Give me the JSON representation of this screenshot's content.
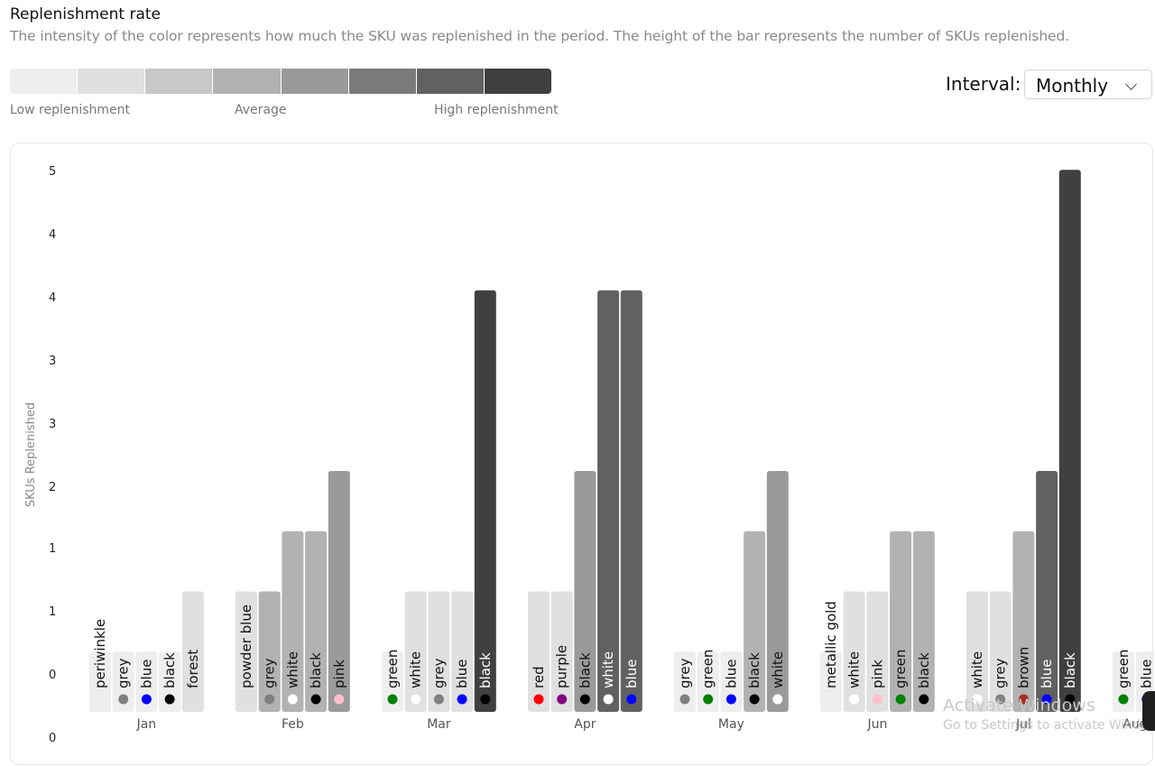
{
  "header": {
    "title": "Replenishment rate",
    "subtitle": "The intensity of the color represents how much the SKU was replenished in the period. The height of the bar represents the number of SKUs replenished."
  },
  "legend": {
    "scale_colors": [
      "#eeeeee",
      "#e0e0e0",
      "#c8c8c8",
      "#b2b2b2",
      "#9a9a9a",
      "#7a7a7a",
      "#616161",
      "#404040"
    ],
    "low_label": "Low replenishment",
    "mid_label": "Average",
    "high_label": "High replenishment"
  },
  "controls": {
    "interval_label": "Interval:",
    "interval_value": "Monthly",
    "chevron_icon": "chevron-down-icon"
  },
  "watermark": {
    "line1": "Activate Windows",
    "line2": "Go to Settings to activate Windows."
  },
  "chart_data": {
    "type": "bar",
    "ylabel": "SKUs Replenished",
    "xlabel": "",
    "y_tick_labels": [
      "0",
      "0",
      "1",
      "1",
      "2",
      "3",
      "3",
      "4",
      "4",
      "5"
    ],
    "ylim": [
      0,
      4.5
    ],
    "groups": [
      {
        "month": "Jan",
        "bars": [
          {
            "label": "periwinkle",
            "value": 0.5,
            "intensity": 1,
            "dot": null
          },
          {
            "label": "grey",
            "value": 0.5,
            "intensity": 1,
            "dot": "#808080"
          },
          {
            "label": "blue",
            "value": 0.5,
            "intensity": 1,
            "dot": "#0000ff"
          },
          {
            "label": "black",
            "value": 0.5,
            "intensity": 1,
            "dot": "#000000"
          },
          {
            "label": "forest",
            "value": 1.0,
            "intensity": 2,
            "dot": null
          }
        ]
      },
      {
        "month": "Feb",
        "bars": [
          {
            "label": "powder blue",
            "value": 1.0,
            "intensity": 2,
            "dot": null
          },
          {
            "label": "grey",
            "value": 1.0,
            "intensity": 4,
            "dot": "#808080"
          },
          {
            "label": "white",
            "value": 1.5,
            "intensity": 4,
            "dot": "#ffffff"
          },
          {
            "label": "black",
            "value": 1.5,
            "intensity": 4,
            "dot": "#000000"
          },
          {
            "label": "pink",
            "value": 2.0,
            "intensity": 5,
            "dot": "#ffc0cb"
          }
        ]
      },
      {
        "month": "Mar",
        "bars": [
          {
            "label": "green",
            "value": 0.5,
            "intensity": 1,
            "dot": "#008000"
          },
          {
            "label": "white",
            "value": 1.0,
            "intensity": 2,
            "dot": "#ffffff"
          },
          {
            "label": "grey",
            "value": 1.0,
            "intensity": 2,
            "dot": "#808080"
          },
          {
            "label": "blue",
            "value": 1.0,
            "intensity": 2,
            "dot": "#0000ff"
          },
          {
            "label": "black",
            "value": 3.5,
            "intensity": 8,
            "dot": "#000000"
          }
        ]
      },
      {
        "month": "Apr",
        "bars": [
          {
            "label": "red",
            "value": 1.0,
            "intensity": 2,
            "dot": "#ff0000"
          },
          {
            "label": "purple",
            "value": 1.0,
            "intensity": 2,
            "dot": "#800080"
          },
          {
            "label": "black",
            "value": 2.0,
            "intensity": 5,
            "dot": "#000000"
          },
          {
            "label": "white",
            "value": 3.5,
            "intensity": 7,
            "dot": "#ffffff"
          },
          {
            "label": "blue",
            "value": 3.5,
            "intensity": 7,
            "dot": "#0000ff"
          }
        ]
      },
      {
        "month": "May",
        "bars": [
          {
            "label": "grey",
            "value": 0.5,
            "intensity": 1,
            "dot": "#808080"
          },
          {
            "label": "green",
            "value": 0.5,
            "intensity": 1,
            "dot": "#008000"
          },
          {
            "label": "blue",
            "value": 0.5,
            "intensity": 1,
            "dot": "#0000ff"
          },
          {
            "label": "black",
            "value": 1.5,
            "intensity": 4,
            "dot": "#000000"
          },
          {
            "label": "white",
            "value": 2.0,
            "intensity": 5,
            "dot": "#ffffff"
          }
        ]
      },
      {
        "month": "Jun",
        "bars": [
          {
            "label": "metallic gold",
            "value": 0.5,
            "intensity": 1,
            "dot": null
          },
          {
            "label": "white",
            "value": 1.0,
            "intensity": 2,
            "dot": "#ffffff"
          },
          {
            "label": "pink",
            "value": 1.0,
            "intensity": 2,
            "dot": "#ffc0cb"
          },
          {
            "label": "green",
            "value": 1.5,
            "intensity": 4,
            "dot": "#008000"
          },
          {
            "label": "black",
            "value": 1.5,
            "intensity": 4,
            "dot": "#000000"
          }
        ]
      },
      {
        "month": "Jul",
        "bars": [
          {
            "label": "white",
            "value": 1.0,
            "intensity": 2,
            "dot": "#ffffff"
          },
          {
            "label": "grey",
            "value": 1.0,
            "intensity": 2,
            "dot": "#808080"
          },
          {
            "label": "brown",
            "value": 1.5,
            "intensity": 4,
            "dot": "#a52a2a"
          },
          {
            "label": "blue",
            "value": 2.0,
            "intensity": 7,
            "dot": "#0000ff"
          },
          {
            "label": "black",
            "value": 4.5,
            "intensity": 8,
            "dot": "#000000"
          }
        ]
      },
      {
        "month": "Aug",
        "bars": [
          {
            "label": "green",
            "value": 0.5,
            "intensity": 1,
            "dot": "#008000"
          },
          {
            "label": "blue",
            "value": 0.5,
            "intensity": 1,
            "dot": "#0000ff"
          }
        ]
      }
    ]
  }
}
